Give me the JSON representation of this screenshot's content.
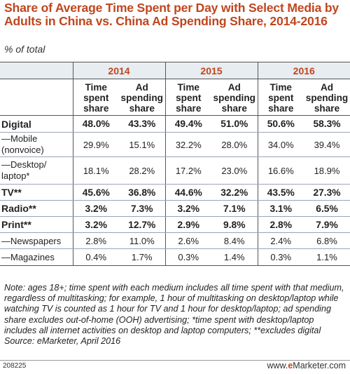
{
  "title": "Share of Average Time Spent per Day with Select Media by Adults in China vs. China Ad Spending Share, 2014-2016",
  "subtitle": "% of total",
  "chart_data": {
    "type": "table",
    "years": [
      "2014",
      "2015",
      "2016"
    ],
    "column_headers": {
      "time": [
        "Time",
        "spent",
        "share"
      ],
      "ad": [
        "Ad",
        "spending",
        "share"
      ]
    },
    "rows": [
      {
        "label": "Digital",
        "values": [
          "48.0%",
          "43.3%",
          "49.4%",
          "51.0%",
          "50.6%",
          "58.3%"
        ]
      },
      {
        "label": "—Mobile (nonvoice)",
        "label_lines": [
          "—Mobile",
          "(nonvoice)"
        ],
        "values": [
          "29.9%",
          "15.1%",
          "32.2%",
          "28.0%",
          "34.0%",
          "39.4%"
        ]
      },
      {
        "label": "—Desktop/ laptop*",
        "label_lines": [
          "—Desktop/",
          "laptop*"
        ],
        "values": [
          "18.1%",
          "28.2%",
          "17.2%",
          "23.0%",
          "16.6%",
          "18.9%"
        ]
      },
      {
        "label": "TV**",
        "values": [
          "45.6%",
          "36.8%",
          "44.6%",
          "32.2%",
          "43.5%",
          "27.3%"
        ]
      },
      {
        "label": "Radio**",
        "values": [
          "3.2%",
          "7.3%",
          "3.2%",
          "7.1%",
          "3.1%",
          "6.5%"
        ]
      },
      {
        "label": "Print**",
        "values": [
          "3.2%",
          "12.7%",
          "2.9%",
          "9.8%",
          "2.8%",
          "7.9%"
        ]
      },
      {
        "label": "—Newspapers",
        "values": [
          "2.8%",
          "11.0%",
          "2.6%",
          "8.4%",
          "2.4%",
          "6.8%"
        ]
      },
      {
        "label": "—Magazines",
        "values": [
          "0.4%",
          "1.7%",
          "0.3%",
          "1.4%",
          "0.3%",
          "1.1%"
        ]
      }
    ]
  },
  "note": "Note: ages 18+; time spent with each medium includes all time spent with that medium, regardless of multitasking; for example, 1 hour of multitasking on desktop/laptop while watching TV is counted as 1 hour for TV and 1 hour for desktop/laptop; ad spending share excludes out-of-home (OOH) advertising; *time spent with desktop/laptop includes all internet activities on desktop and laptop computers; **excludes digital",
  "source": "Source: eMarketer, April 2016",
  "footer": {
    "code": "208225",
    "brand_prefix": "www.",
    "brand_e": "e",
    "brand_suffix": "Marketer.com"
  },
  "colors": {
    "title": "#c0461e",
    "header_bg": "#e8edf2"
  }
}
